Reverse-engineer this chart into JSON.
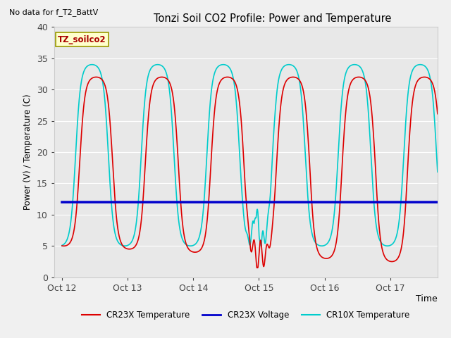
{
  "title": "Tonzi Soil CO2 Profile: Power and Temperature",
  "no_data_label": "No data for f_T2_BattV",
  "annotation_label": "TZ_soilco2",
  "ylabel": "Power (V) / Temperature (C)",
  "xlabel": "Time",
  "ylim": [
    0,
    40
  ],
  "background_color": "#f0f0f0",
  "plot_bg_color": "#e8e8e8",
  "grid_color": "#ffffff",
  "cr23x_temp_color": "#dd0000",
  "cr23x_volt_color": "#0000cc",
  "cr10x_temp_color": "#00cccc",
  "xtick_labels": [
    "Oct 12",
    "Oct 13",
    "Oct 14",
    "Oct 15",
    "Oct 16",
    "Oct 17"
  ],
  "xtick_positions": [
    0,
    1,
    2,
    3,
    4,
    5
  ],
  "ytick_positions": [
    0,
    5,
    10,
    15,
    20,
    25,
    30,
    35,
    40
  ],
  "voltage_value": 12.0,
  "legend_entries": [
    "CR23X Temperature",
    "CR23X Voltage",
    "CR10X Temperature"
  ],
  "figsize": [
    6.4,
    4.8
  ],
  "dpi": 100
}
